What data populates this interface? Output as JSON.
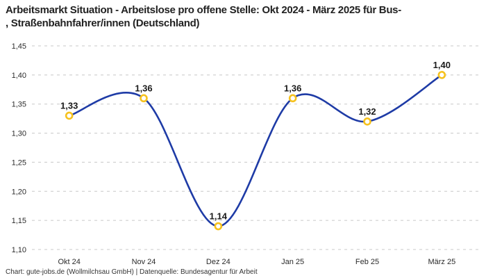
{
  "title": {
    "line1": "Arbeitsmarkt Situation - Arbeitslose pro offene Stelle: Okt 2024 - März 2025 für Bus-",
    "line2": ", Straßenbahnfahrer/innen (Deutschland)"
  },
  "footer": "Chart: gute-jobs.de (Wollmilchsau GmbH) | Datenquelle: Bundesagentur für Arbeit",
  "chart_data": {
    "type": "line",
    "title": "Arbeitsmarkt Situation - Arbeitslose pro offene Stelle: Okt 2024 - März 2025 für Bus-, Straßenbahnfahrer/innen (Deutschland)",
    "categories": [
      "Okt 24",
      "Nov 24",
      "Dez 24",
      "Jan 25",
      "Feb 25",
      "März 25"
    ],
    "values": [
      1.33,
      1.36,
      1.14,
      1.36,
      1.32,
      1.4
    ],
    "point_labels": [
      "1,33",
      "1,36",
      "1,14",
      "1,36",
      "1,32",
      "1,40"
    ],
    "xlabel": "",
    "ylabel": "",
    "ylim": [
      1.1,
      1.45
    ],
    "ytick_step": 0.05,
    "ytick_labels": [
      "1,10",
      "1,15",
      "1,20",
      "1,25",
      "1,30",
      "1,35",
      "1,40",
      "1,45"
    ],
    "grid": "horizontal-dashed",
    "legend_position": "none",
    "line_style": "smooth",
    "colors": {
      "line": "#1e3ba6",
      "marker_stroke": "#f6c21e",
      "marker_fill": "#ffffff",
      "grid": "#c8c8c8",
      "tick_text": "#2b2b2b",
      "point_label_text": "#1a1a1a"
    }
  }
}
